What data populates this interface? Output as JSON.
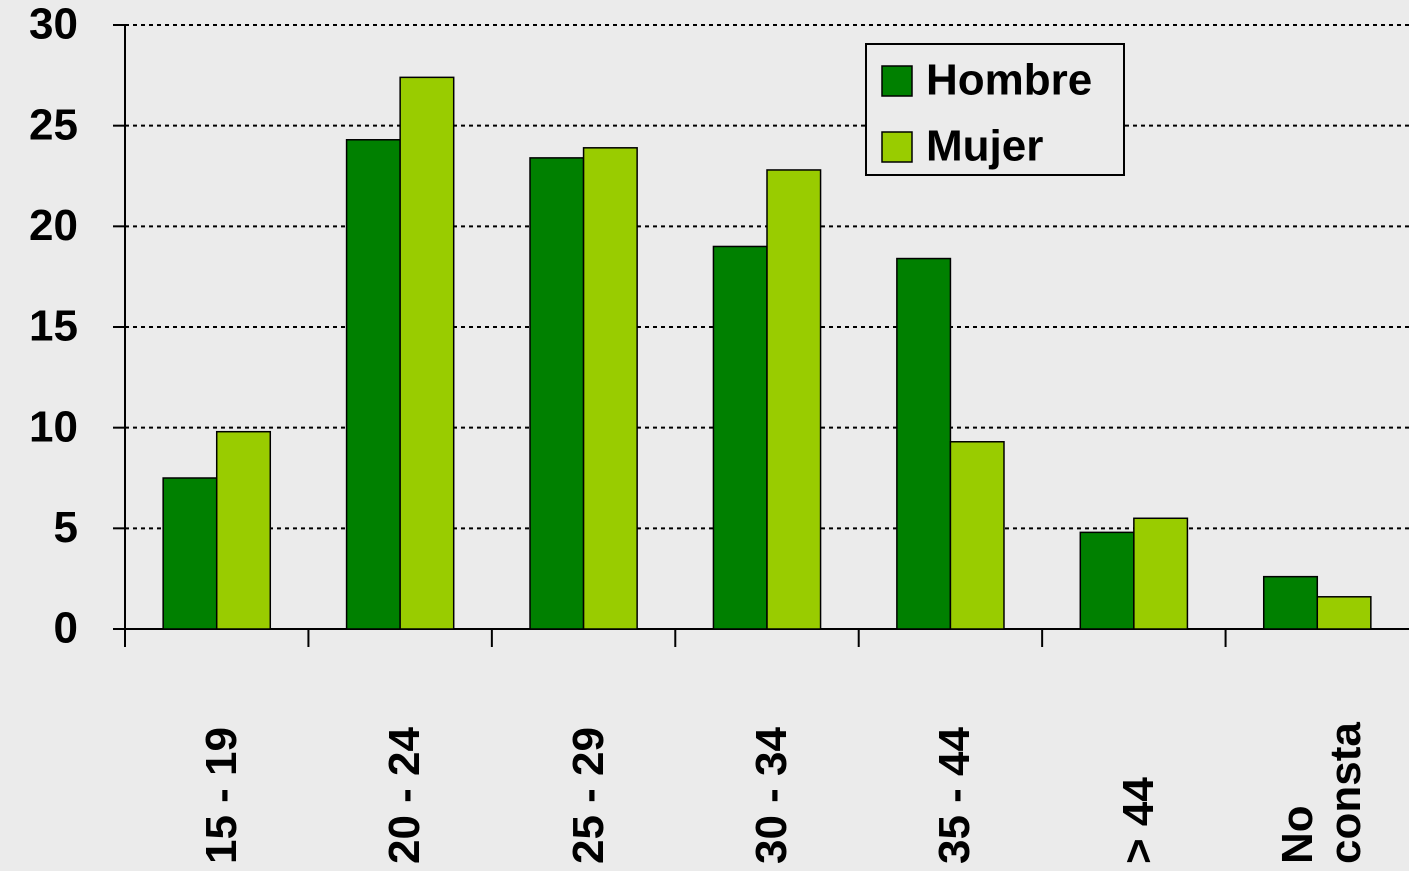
{
  "chart_data": {
    "type": "bar",
    "categories": [
      "15 - 19",
      "20 - 24",
      "25 - 29",
      "30 - 34",
      "35 - 44",
      "> 44",
      "No consta"
    ],
    "series": [
      {
        "name": "Hombre",
        "color": "#008000",
        "values": [
          7.5,
          24.3,
          23.4,
          19.0,
          18.4,
          4.8,
          2.6
        ]
      },
      {
        "name": "Mujer",
        "color": "#99cc00",
        "values": [
          9.8,
          27.4,
          23.9,
          22.8,
          9.3,
          5.5,
          1.6
        ]
      }
    ],
    "ylim": [
      0,
      30
    ],
    "yticks": [
      0,
      5,
      10,
      15,
      20,
      25,
      30
    ],
    "grid": true,
    "legend": "top-right"
  }
}
